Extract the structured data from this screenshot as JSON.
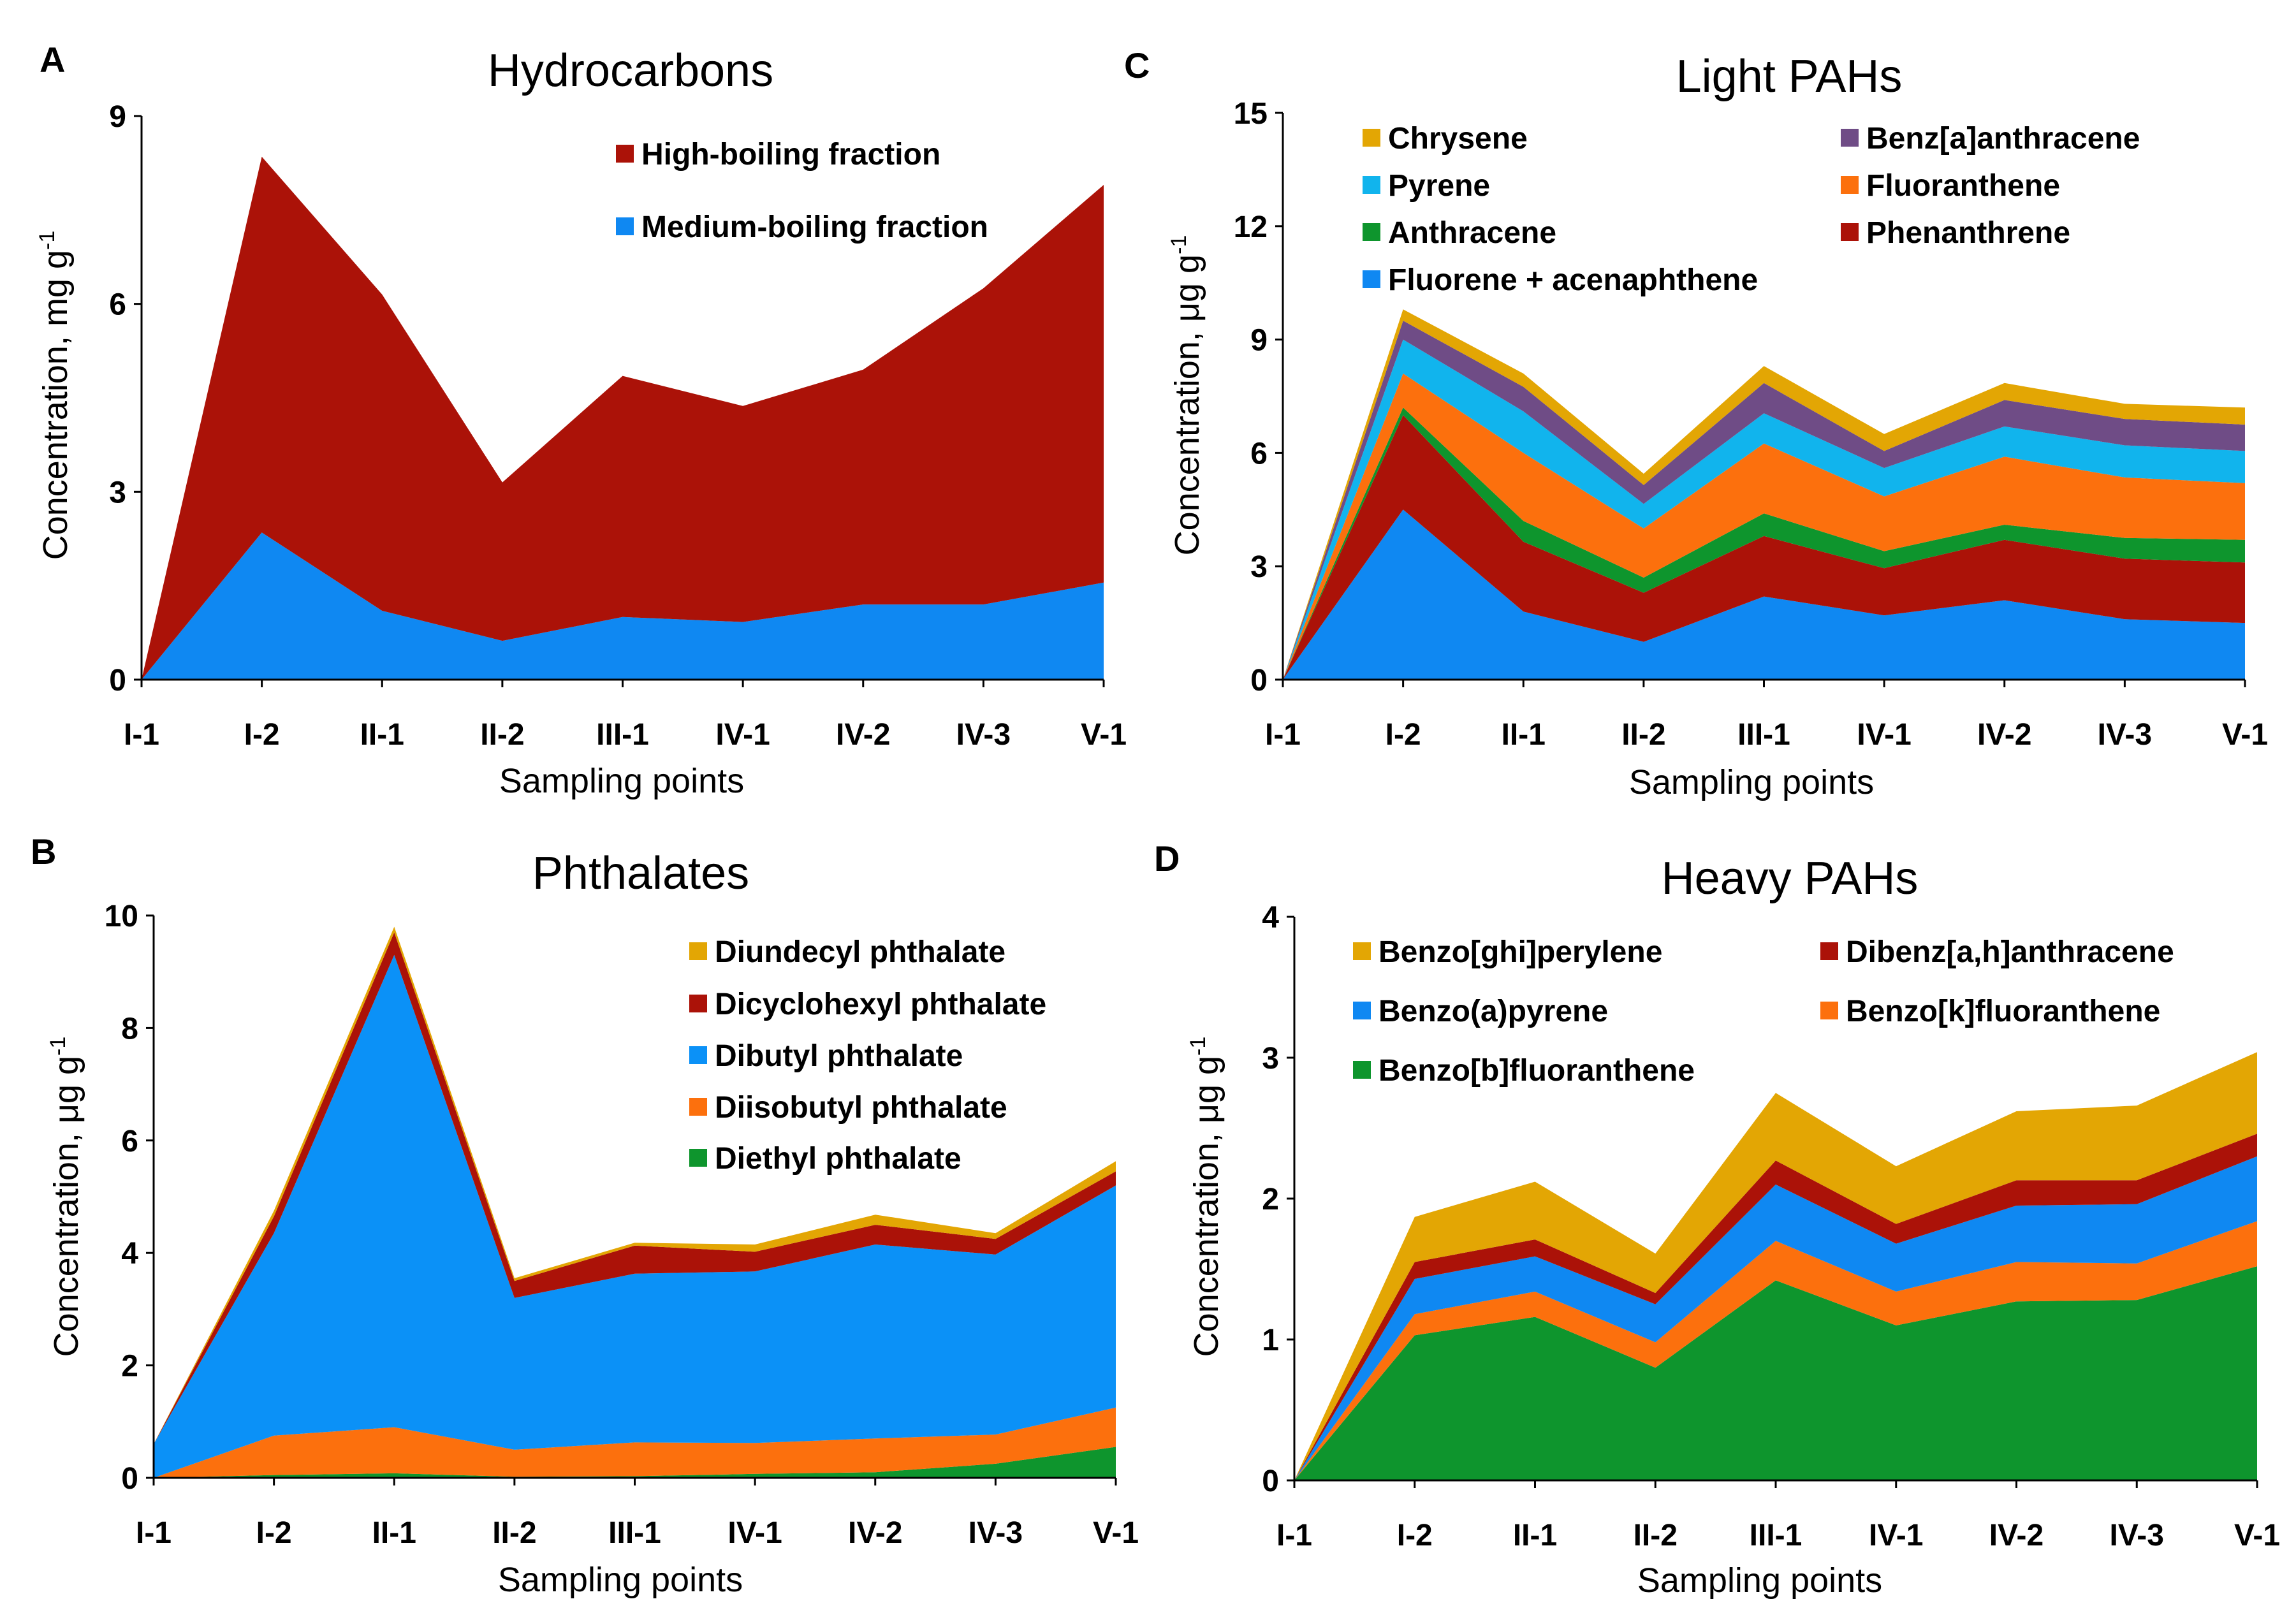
{
  "chart_data": [
    {
      "id": "A",
      "letter": "A",
      "type": "area",
      "stacked": true,
      "title": "Hydrocarbons",
      "xlabel": "Sampling points",
      "ylabel": "Concentration, mg g",
      "ylabel_sup": "-1",
      "ylim": [
        0,
        9
      ],
      "yticks": [
        "0",
        "3",
        "6",
        "9"
      ],
      "categories": [
        "I-1",
        "I-2",
        "II-1",
        "II-2",
        "III-1",
        "IV-1",
        "IV-2",
        "IV-3",
        "V-1"
      ],
      "legend_order": [
        1,
        0
      ],
      "legend_cols": 1,
      "series": [
        {
          "name": "Medium-boiling fraction",
          "color": "#0f88f2",
          "values": [
            0,
            2.35,
            1.1,
            0.62,
            1.0,
            0.92,
            1.2,
            1.2,
            1.55
          ]
        },
        {
          "name": "High-boiling fraction",
          "color": "#ab1208",
          "values": [
            0,
            6.0,
            5.05,
            2.53,
            3.85,
            3.45,
            3.75,
            5.05,
            6.35
          ]
        }
      ]
    },
    {
      "id": "B",
      "letter": "B",
      "type": "area",
      "stacked": true,
      "title": "Phthalates",
      "xlabel": "Sampling points",
      "ylabel": "Concentration, μg g",
      "ylabel_sup": "-1",
      "ylim": [
        0,
        10
      ],
      "yticks": [
        "0",
        "2",
        "4",
        "6",
        "8",
        "10"
      ],
      "categories": [
        "I-1",
        "I-2",
        "II-1",
        "II-2",
        "III-1",
        "IV-1",
        "IV-2",
        "IV-3",
        "V-1"
      ],
      "legend_order": [
        4,
        3,
        2,
        1,
        0
      ],
      "legend_cols": 1,
      "series": [
        {
          "name": "Diethyl phthalate",
          "color": "#0e952d",
          "values": [
            0,
            0.05,
            0.08,
            0.02,
            0.03,
            0.07,
            0.1,
            0.25,
            0.55
          ]
        },
        {
          "name": "Diisobutyl phthalate",
          "color": "#fc700d",
          "values": [
            0,
            0.7,
            0.82,
            0.48,
            0.6,
            0.55,
            0.6,
            0.52,
            0.7
          ]
        },
        {
          "name": "Dibutyl phthalate",
          "color": "#0b91f7",
          "values": [
            0.6,
            3.6,
            8.4,
            2.7,
            3.0,
            3.05,
            3.45,
            3.2,
            3.95
          ]
        },
        {
          "name": "Dicyclohexyl phthalate",
          "color": "#ab1208",
          "values": [
            0,
            0.3,
            0.4,
            0.3,
            0.5,
            0.35,
            0.35,
            0.28,
            0.25
          ]
        },
        {
          "name": "Diundecyl phthalate",
          "color": "#e3a604",
          "values": [
            0,
            0.1,
            0.1,
            0.05,
            0.05,
            0.13,
            0.18,
            0.1,
            0.18
          ]
        }
      ]
    },
    {
      "id": "C",
      "letter": "C",
      "type": "area",
      "stacked": true,
      "title": "Light PAHs",
      "xlabel": "Sampling points",
      "ylabel": "Concentration, μg g",
      "ylabel_sup": "-1",
      "ylim": [
        0,
        15
      ],
      "yticks": [
        "0",
        "3",
        "6",
        "9",
        "12",
        "15"
      ],
      "categories": [
        "I-1",
        "I-2",
        "II-1",
        "II-2",
        "III-1",
        "IV-1",
        "IV-2",
        "IV-3",
        "V-1"
      ],
      "legend_order": [
        6,
        5,
        4,
        3,
        2,
        1,
        0
      ],
      "legend_cols": 2,
      "series": [
        {
          "name": "Fluorene + acenaphthene",
          "color": "#0f88f2",
          "values": [
            0,
            4.5,
            1.8,
            1.0,
            2.2,
            1.7,
            2.1,
            1.6,
            1.5
          ]
        },
        {
          "name": "Phenanthrene",
          "color": "#ab1208",
          "values": [
            0,
            2.5,
            1.85,
            1.3,
            1.6,
            1.25,
            1.6,
            1.6,
            1.6
          ]
        },
        {
          "name": "Anthracene",
          "color": "#0e952d",
          "values": [
            0,
            0.2,
            0.55,
            0.4,
            0.6,
            0.45,
            0.4,
            0.55,
            0.6
          ]
        },
        {
          "name": "Fluoranthene",
          "color": "#fc700d",
          "values": [
            0,
            0.9,
            1.8,
            1.3,
            1.85,
            1.45,
            1.8,
            1.6,
            1.5
          ]
        },
        {
          "name": "Pyrene",
          "color": "#11b4ed",
          "values": [
            0,
            0.9,
            1.1,
            0.65,
            0.8,
            0.75,
            0.8,
            0.85,
            0.85
          ]
        },
        {
          "name": "Benz[a]anthracene",
          "color": "#6f4c86",
          "values": [
            0,
            0.5,
            0.65,
            0.5,
            0.8,
            0.45,
            0.7,
            0.7,
            0.7
          ]
        },
        {
          "name": "Chrysene",
          "color": "#e3a604",
          "values": [
            0,
            0.3,
            0.35,
            0.3,
            0.45,
            0.45,
            0.45,
            0.4,
            0.45
          ]
        }
      ]
    },
    {
      "id": "D",
      "letter": "D",
      "type": "area",
      "stacked": true,
      "title": "Heavy PAHs",
      "xlabel": "Sampling points",
      "ylabel": "Concentration, μg g",
      "ylabel_sup": "-1",
      "ylim": [
        0,
        4
      ],
      "yticks": [
        "0",
        "1",
        "2",
        "3",
        "4"
      ],
      "categories": [
        "I-1",
        "I-2",
        "II-1",
        "II-2",
        "III-1",
        "IV-1",
        "IV-2",
        "IV-3",
        "V-1"
      ],
      "legend_order": [
        4,
        3,
        2,
        1,
        0
      ],
      "legend_cols": 2,
      "series": [
        {
          "name": "Benzo[b]fluoranthene",
          "color": "#0e952d",
          "values": [
            0,
            1.03,
            1.16,
            0.8,
            1.42,
            1.1,
            1.27,
            1.28,
            1.52
          ]
        },
        {
          "name": "Benzo[k]fluoranthene",
          "color": "#fc700d",
          "values": [
            0,
            0.15,
            0.18,
            0.18,
            0.28,
            0.24,
            0.28,
            0.26,
            0.32
          ]
        },
        {
          "name": "Benzo(a)pyrene",
          "color": "#0f88f2",
          "values": [
            0,
            0.25,
            0.25,
            0.27,
            0.4,
            0.34,
            0.4,
            0.42,
            0.46
          ]
        },
        {
          "name": "Dibenz[a,h]anthracene",
          "color": "#ab1208",
          "values": [
            0,
            0.12,
            0.12,
            0.08,
            0.17,
            0.14,
            0.18,
            0.17,
            0.16
          ]
        },
        {
          "name": "Benzo[ghi]perylene",
          "color": "#e3a604",
          "values": [
            0,
            0.32,
            0.41,
            0.28,
            0.48,
            0.41,
            0.49,
            0.53,
            0.58
          ]
        }
      ]
    }
  ]
}
